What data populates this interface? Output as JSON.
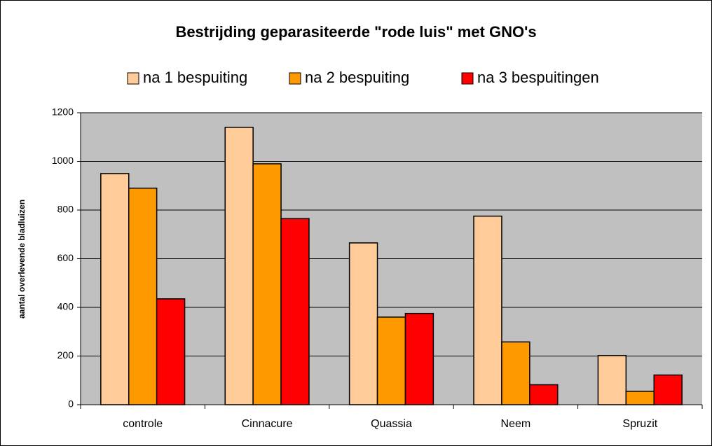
{
  "chart_data": {
    "type": "bar",
    "title": "Bestrijding geparasiteerde \"rode luis\" met GNO's",
    "y_label": "aantal overlevende bladluizen",
    "categories": [
      "controle",
      "Cinnacure",
      "Quassia",
      "Neem",
      "Spruzit"
    ],
    "series": [
      {
        "name": "na 1 bespuiting",
        "color": "#ffcc99",
        "values": [
          950,
          1140,
          665,
          775,
          202
        ]
      },
      {
        "name": "na 2 bespuiting",
        "color": "#ff9900",
        "values": [
          890,
          990,
          360,
          258,
          55
        ]
      },
      {
        "name": "na 3 bespuitingen",
        "color": "#ff0000",
        "values": [
          435,
          765,
          375,
          82,
          122
        ]
      }
    ],
    "ylim": [
      0,
      1200
    ],
    "yticks": [
      0,
      200,
      400,
      600,
      800,
      1000,
      1200
    ],
    "grid": true,
    "legend": "top",
    "plot_background": "#c0c0c0"
  }
}
